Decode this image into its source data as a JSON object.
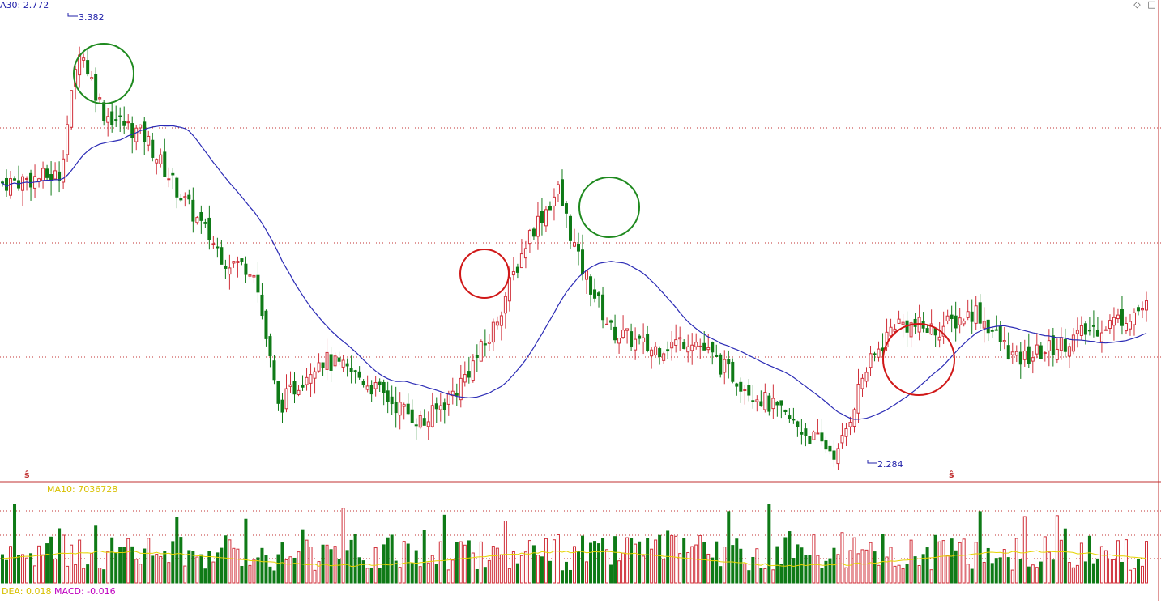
{
  "colors": {
    "up": "#d0303a",
    "down": "#0f7a17",
    "ma_line": "#2b2bb5",
    "vol_ma": "#e6d400",
    "grid": "#c03030",
    "circle_green": "#1f8a1f",
    "circle_red": "#d01818",
    "label_blue": "#2222aa",
    "label_yellow": "#d8c000",
    "label_magenta": "#c000c0"
  },
  "header": {
    "ma_label": "A30: 2.772",
    "vol_label": "MA10: 7036728",
    "dea_label": "DEA: 0.018",
    "macd_label": "MACD: -0.016",
    "high_label": "3.382",
    "low_label": "2.284",
    "top_icons": [
      "◇",
      "□"
    ]
  },
  "chart_data": {
    "type": "candlestick",
    "series": [
      {
        "name": "A30",
        "last": 2.772
      },
      {
        "name": "MA10",
        "last": 7036728
      }
    ],
    "price_high": 3.382,
    "price_low": 2.284,
    "dea": 0.018,
    "macd": -0.016,
    "markers": [
      "ŝ",
      "ŝ"
    ],
    "circled_zones": [
      {
        "color": "green"
      },
      {
        "color": "red"
      },
      {
        "color": "green"
      },
      {
        "color": "red"
      }
    ]
  }
}
